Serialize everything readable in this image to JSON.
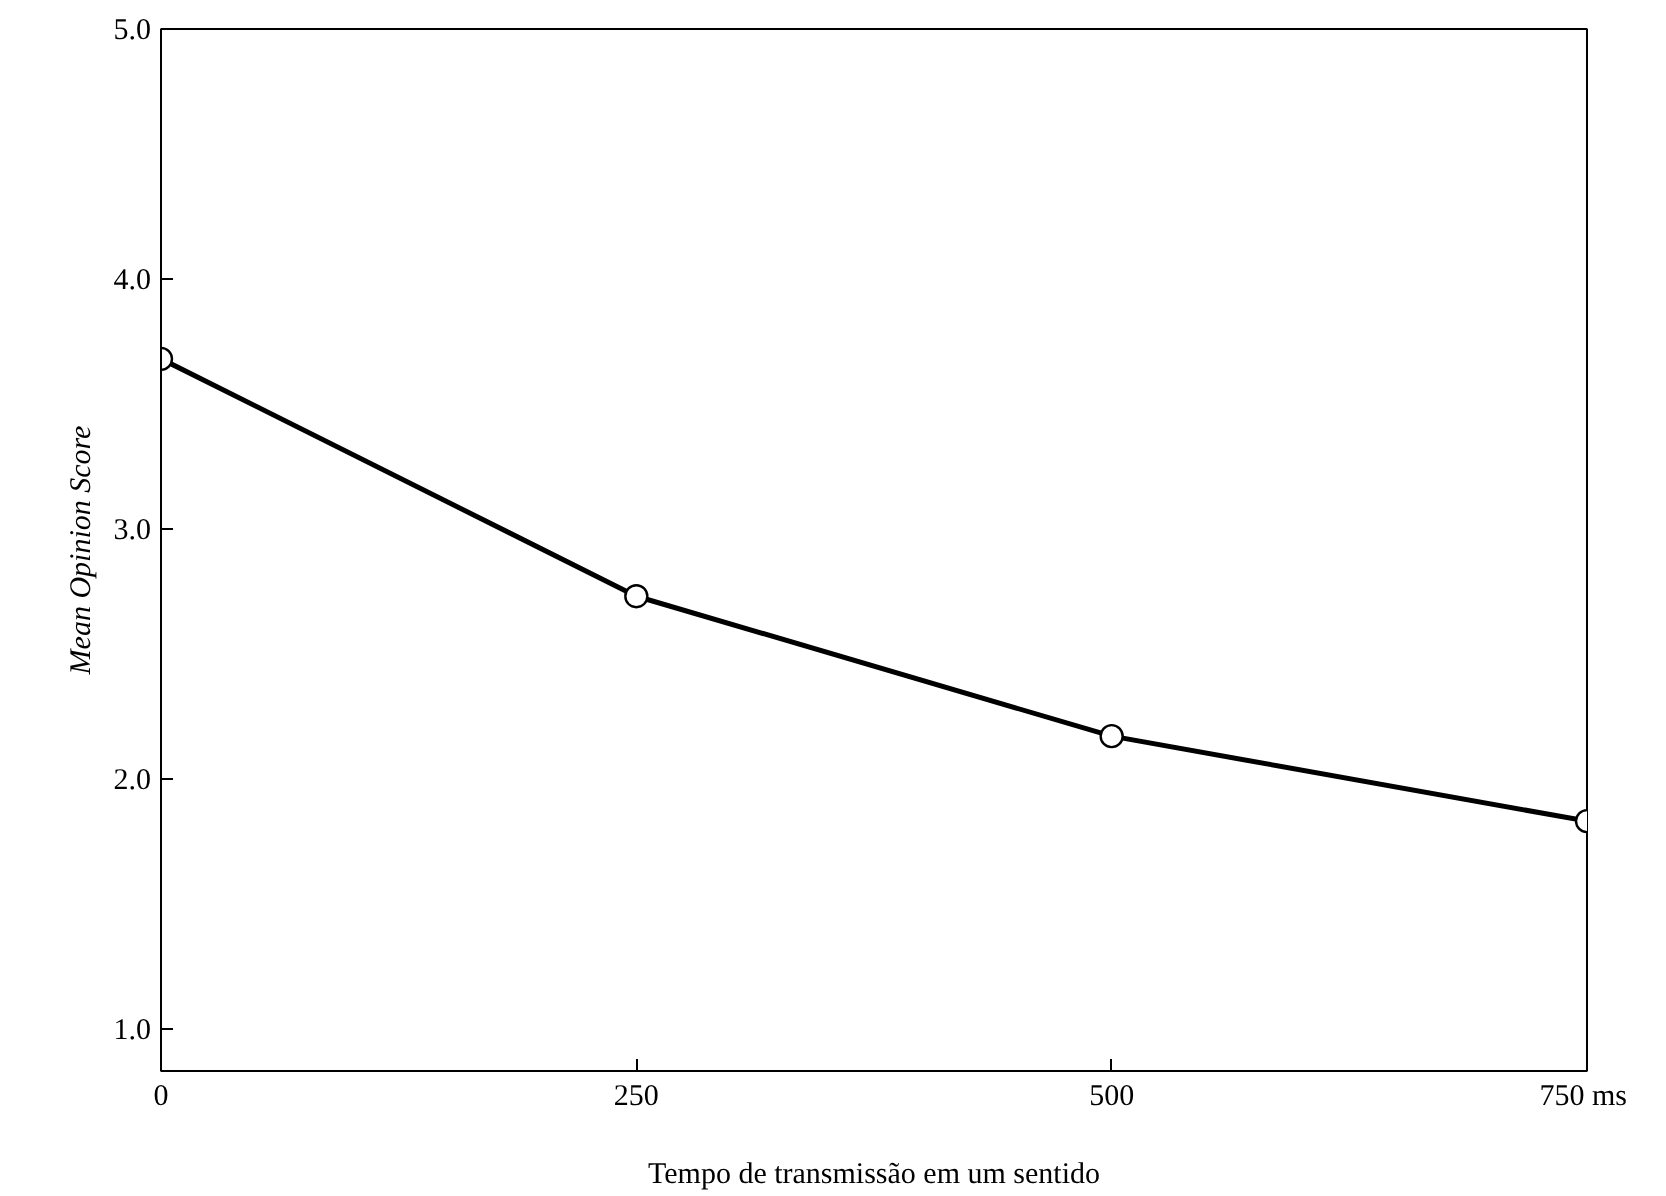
{
  "chart_data": {
    "type": "line",
    "xlabel": "Tempo de transmissão em um sentido",
    "ylabel": "Mean Opinion Score",
    "x": [
      0,
      250,
      500,
      750
    ],
    "series": [
      {
        "color": "#000000",
        "values": [
          3.68,
          2.73,
          2.17,
          1.83
        ]
      }
    ],
    "xlim": [
      0,
      750
    ],
    "ylim": [
      0.83,
      5.0
    ],
    "xticks": [
      0,
      250,
      500,
      {
        "value": 750,
        "label": "750  ms"
      }
    ],
    "yticks": [
      {
        "value": 1,
        "label": "1.0"
      },
      {
        "value": 2,
        "label": "2.0"
      },
      {
        "value": 3,
        "label": "3.0"
      },
      {
        "value": 4,
        "label": "4.0"
      },
      {
        "value": 5,
        "label": "5.0"
      }
    ],
    "grid": false,
    "marker": "circle",
    "line_style": "solid"
  }
}
